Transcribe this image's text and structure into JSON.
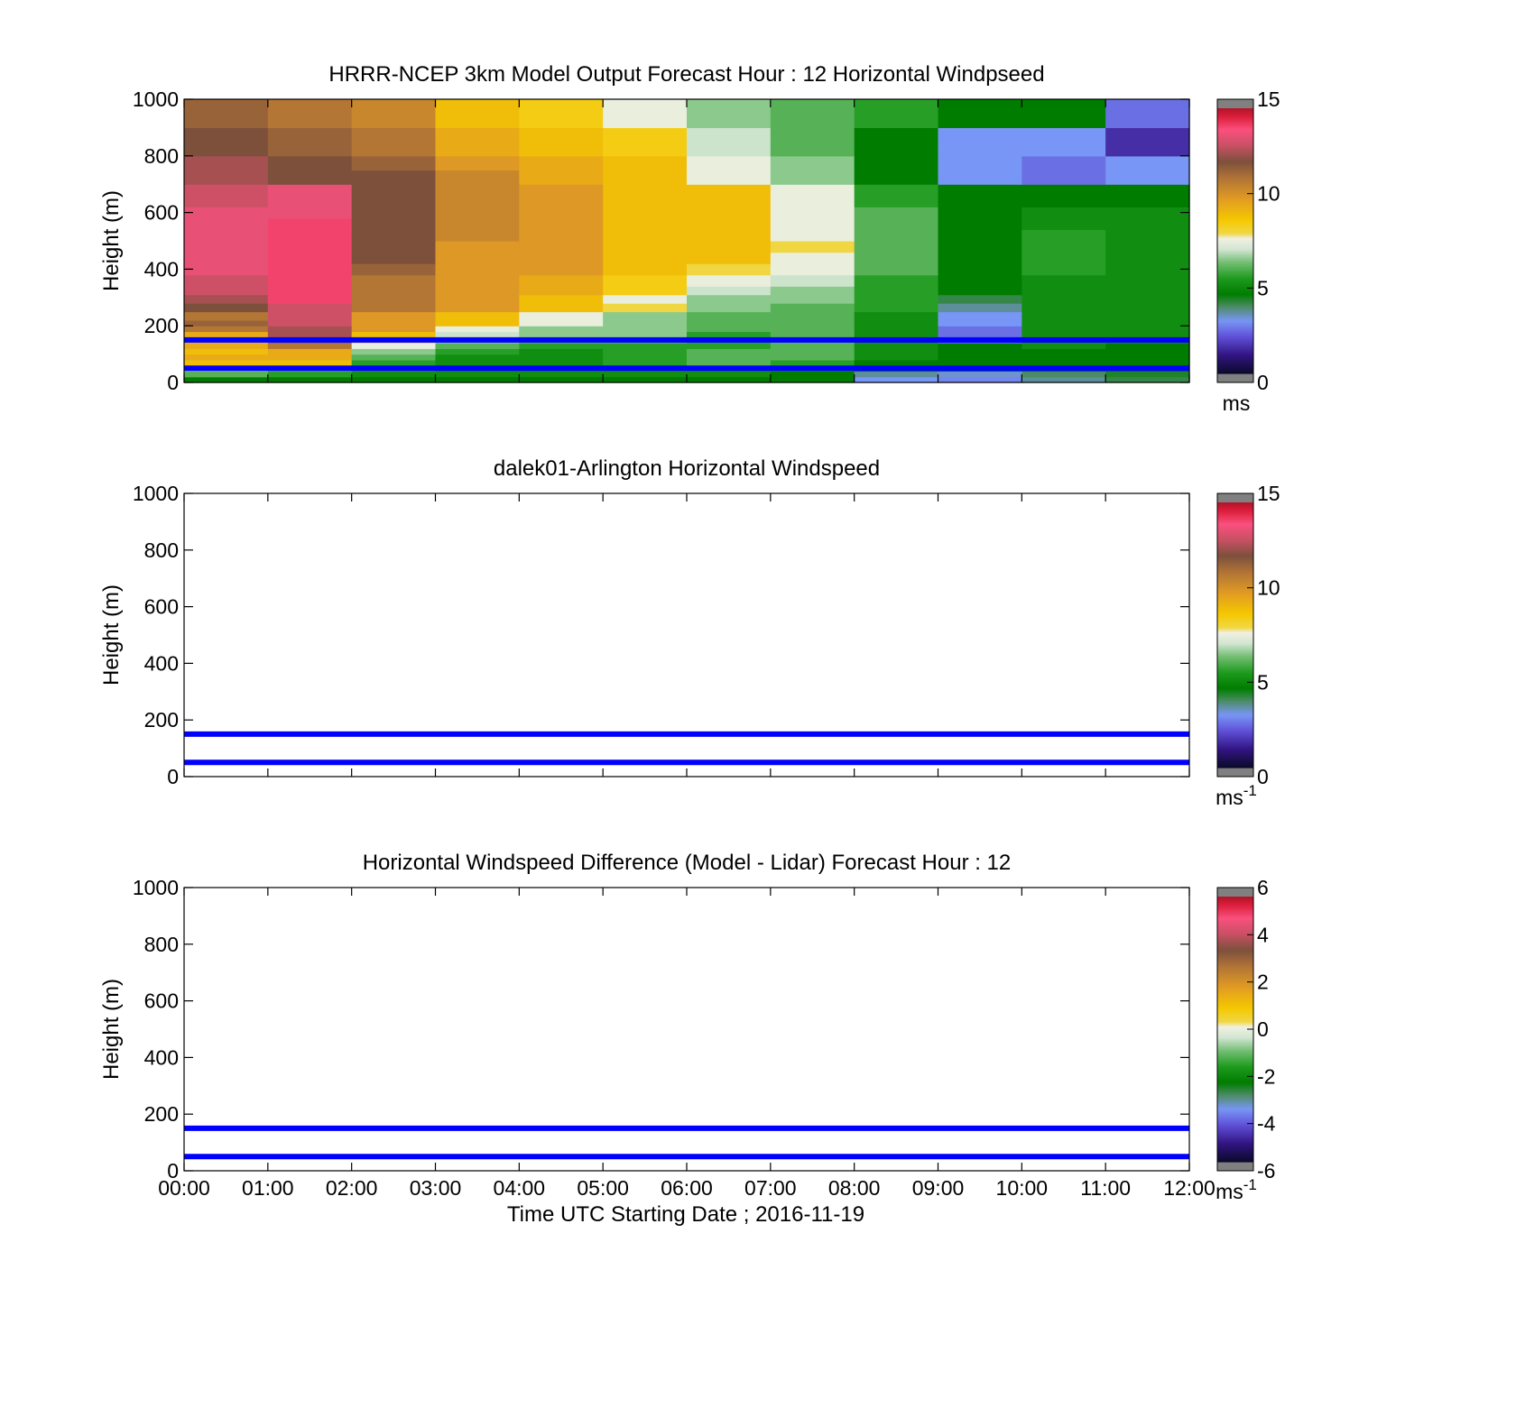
{
  "chart_data": [
    {
      "type": "heatmap",
      "title": "HRRR-NCEP 3km Model Output   Forecast Hour : 12 Horizontal Windpseed",
      "ylabel": "Height (m)",
      "xlabel": "",
      "ylim": [
        0,
        1000
      ],
      "yticks": [
        "0",
        "200",
        "400",
        "600",
        "800",
        "1000"
      ],
      "xticks": [
        "00:00",
        "01:00",
        "02:00",
        "03:00",
        "04:00",
        "05:00",
        "06:00",
        "07:00",
        "08:00",
        "09:00",
        "10:00",
        "11:00",
        "12:00"
      ],
      "show_xtick_labels": false,
      "colorbar": {
        "min": 0,
        "max": 15,
        "ticks": [
          "0",
          "5",
          "10",
          "15"
        ],
        "unit": "ms",
        "unit_sup": ""
      },
      "reference_lines": [
        50,
        150
      ],
      "z_grid": {
        "x_hours": [
          0,
          1,
          2,
          3,
          4,
          5,
          6,
          7,
          8,
          9,
          10,
          11
        ],
        "level_bounds_m": [
          0,
          20,
          40,
          60,
          80,
          100,
          120,
          140,
          160,
          180,
          200,
          220,
          250,
          280,
          310,
          340,
          380,
          420,
          460,
          500,
          540,
          580,
          620,
          660,
          700,
          750,
          800,
          850,
          900,
          950,
          1000
        ],
        "rows": [
          [
            4.5,
            4.5,
            4.5,
            4.5,
            4.5,
            4.5,
            4.5,
            4.5,
            3.0,
            2.8,
            3.5,
            4.0
          ],
          [
            6.0,
            5.5,
            5.0,
            5.0,
            5.0,
            5.0,
            5.0,
            4.5,
            3.5,
            3.2,
            3.8,
            4.2
          ],
          [
            6.5,
            6.0,
            5.5,
            5.0,
            5.0,
            5.0,
            5.0,
            5.0,
            4.5,
            4.5,
            4.5,
            4.5
          ],
          [
            9.0,
            9.0,
            5.5,
            5.0,
            5.0,
            5.5,
            6.0,
            5.5,
            4.5,
            4.5,
            4.5,
            4.5
          ],
          [
            9.5,
            9.5,
            6.0,
            5.0,
            5.0,
            5.5,
            6.0,
            6.0,
            5.0,
            4.5,
            4.5,
            4.5
          ],
          [
            9.0,
            9.5,
            6.5,
            5.5,
            5.0,
            5.5,
            6.0,
            6.0,
            5.0,
            4.5,
            4.5,
            4.5
          ],
          [
            9.5,
            11.0,
            7.5,
            6.0,
            5.5,
            5.5,
            5.5,
            6.0,
            5.0,
            4.5,
            5.0,
            4.5
          ],
          [
            9.5,
            11.5,
            8.0,
            6.5,
            6.0,
            6.0,
            5.5,
            6.0,
            5.0,
            2.5,
            5.0,
            5.0
          ],
          [
            9.5,
            12.5,
            9.0,
            7.0,
            6.5,
            6.5,
            5.5,
            6.0,
            5.0,
            2.5,
            5.0,
            5.0
          ],
          [
            11.0,
            12.5,
            10.0,
            7.5,
            6.5,
            6.5,
            6.0,
            6.0,
            5.0,
            2.5,
            5.0,
            5.0
          ],
          [
            11.5,
            13.0,
            10.0,
            9.0,
            7.5,
            6.5,
            6.0,
            6.0,
            5.0,
            3.0,
            5.0,
            5.0
          ],
          [
            11.0,
            13.0,
            10.0,
            9.0,
            7.5,
            6.5,
            6.0,
            6.0,
            5.0,
            3.0,
            5.0,
            5.0
          ],
          [
            12.0,
            13.0,
            11.0,
            10.0,
            9.0,
            8.0,
            6.5,
            6.0,
            5.5,
            3.5,
            5.0,
            5.0
          ],
          [
            12.5,
            14.0,
            11.0,
            10.0,
            9.0,
            7.5,
            6.5,
            6.5,
            5.5,
            4.0,
            5.0,
            5.0
          ],
          [
            13.0,
            14.0,
            11.0,
            10.0,
            9.5,
            8.5,
            7.0,
            6.5,
            5.5,
            4.5,
            5.0,
            5.0
          ],
          [
            13.0,
            14.0,
            11.0,
            10.0,
            9.5,
            8.5,
            7.5,
            7.0,
            5.5,
            4.5,
            5.0,
            5.0
          ],
          [
            13.5,
            14.0,
            11.5,
            10.0,
            10.0,
            9.0,
            8.0,
            7.5,
            6.0,
            4.5,
            5.5,
            5.0
          ],
          [
            13.5,
            14.0,
            12.0,
            10.0,
            10.0,
            9.0,
            9.0,
            7.5,
            6.0,
            4.5,
            5.5,
            5.0
          ],
          [
            13.5,
            14.0,
            12.0,
            10.0,
            10.0,
            9.0,
            9.0,
            8.0,
            6.0,
            4.5,
            5.5,
            5.0
          ],
          [
            13.5,
            14.0,
            12.0,
            10.5,
            10.0,
            9.0,
            9.0,
            7.5,
            6.0,
            4.5,
            5.5,
            5.0
          ],
          [
            13.5,
            14.0,
            12.0,
            10.5,
            10.0,
            9.0,
            9.0,
            7.5,
            6.0,
            4.5,
            5.0,
            5.0
          ],
          [
            13.5,
            13.5,
            12.0,
            10.5,
            10.0,
            9.0,
            9.0,
            7.5,
            6.0,
            4.5,
            5.0,
            5.0
          ],
          [
            13.0,
            13.5,
            12.0,
            10.5,
            10.0,
            9.0,
            9.0,
            7.5,
            5.5,
            4.5,
            4.5,
            4.5
          ],
          [
            13.0,
            13.5,
            12.0,
            10.5,
            10.0,
            9.0,
            9.0,
            7.5,
            5.5,
            4.5,
            4.5,
            4.5
          ],
          [
            12.5,
            12.0,
            12.0,
            10.5,
            9.5,
            9.0,
            7.5,
            6.5,
            4.5,
            3.0,
            2.5,
            3.0
          ],
          [
            12.5,
            12.0,
            11.5,
            10.0,
            9.5,
            9.0,
            7.5,
            6.5,
            4.5,
            3.0,
            2.5,
            3.0
          ],
          [
            12.0,
            11.5,
            11.0,
            9.5,
            9.0,
            8.5,
            7.0,
            6.0,
            4.5,
            3.0,
            3.0,
            1.5
          ],
          [
            12.0,
            11.5,
            11.0,
            9.5,
            9.0,
            8.5,
            7.0,
            6.0,
            4.5,
            3.0,
            3.0,
            1.5
          ],
          [
            11.5,
            11.0,
            10.5,
            9.0,
            8.5,
            7.5,
            6.5,
            6.0,
            5.5,
            4.5,
            4.5,
            2.5
          ],
          [
            11.5,
            11.0,
            10.5,
            9.0,
            8.5,
            7.5,
            6.5,
            6.0,
            5.5,
            4.5,
            4.5,
            2.5
          ]
        ]
      }
    },
    {
      "type": "heatmap",
      "title": "dalek01-Arlington  Horizontal Windspeed",
      "ylabel": "Height (m)",
      "xlabel": "",
      "ylim": [
        0,
        1000
      ],
      "yticks": [
        "0",
        "200",
        "400",
        "600",
        "800",
        "1000"
      ],
      "xticks": [
        "00:00",
        "01:00",
        "02:00",
        "03:00",
        "04:00",
        "05:00",
        "06:00",
        "07:00",
        "08:00",
        "09:00",
        "10:00",
        "11:00",
        "12:00"
      ],
      "show_xtick_labels": false,
      "colorbar": {
        "min": 0,
        "max": 15,
        "ticks": [
          "0",
          "5",
          "10",
          "15"
        ],
        "unit": "ms",
        "unit_sup": "-1"
      },
      "reference_lines": [
        50,
        150
      ],
      "z_grid": null
    },
    {
      "type": "heatmap",
      "title": "Horizontal Windspeed Difference (Model - Lidar) Forecast Hour : 12",
      "ylabel": "Height (m)",
      "xlabel": "Time UTC  Starting Date ; 2016-11-19",
      "ylim": [
        0,
        1000
      ],
      "yticks": [
        "0",
        "200",
        "400",
        "600",
        "800",
        "1000"
      ],
      "xticks": [
        "00:00",
        "01:00",
        "02:00",
        "03:00",
        "04:00",
        "05:00",
        "06:00",
        "07:00",
        "08:00",
        "09:00",
        "10:00",
        "11:00",
        "12:00"
      ],
      "show_xtick_labels": true,
      "colorbar": {
        "min": -6,
        "max": 6,
        "ticks": [
          "-6",
          "-4",
          "-2",
          "0",
          "2",
          "4",
          "6"
        ],
        "unit": "ms",
        "unit_sup": "-1"
      },
      "reference_lines": [
        50,
        150
      ],
      "z_grid": null
    }
  ]
}
